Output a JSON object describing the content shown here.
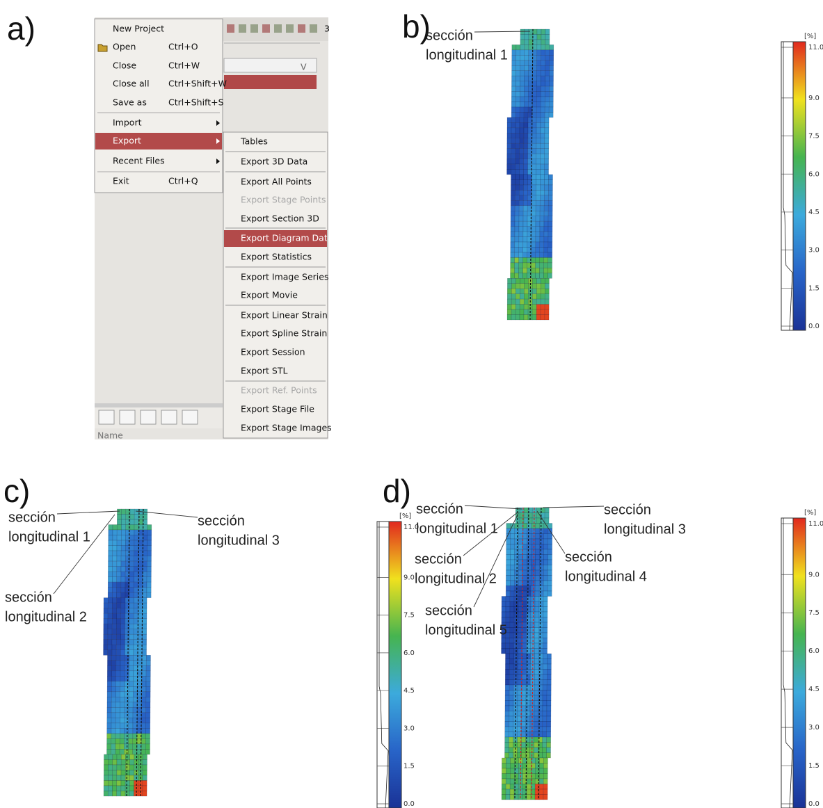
{
  "panels": {
    "a": "a)",
    "b": "b)",
    "c": "c)",
    "d": "d)"
  },
  "menu": {
    "items": [
      {
        "label": "New Project"
      },
      {
        "label": "Open",
        "shortcut": "Ctrl+O"
      },
      {
        "label": "Close",
        "shortcut": "Ctrl+W"
      },
      {
        "label": "Close all",
        "shortcut": "Ctrl+Shift+W"
      },
      {
        "label": "Save as",
        "shortcut": "Ctrl+Shift+S"
      },
      {
        "label": "Import",
        "submenu": true
      },
      {
        "label": "Export",
        "submenu": true,
        "highlighted": true
      },
      {
        "label": "Recent Files",
        "submenu": true
      },
      {
        "label": "Exit",
        "shortcut": "Ctrl+Q"
      }
    ],
    "submenu": [
      {
        "label": "Tables"
      },
      {
        "label": "Export 3D Data"
      },
      {
        "label": "Export All Points"
      },
      {
        "label": "Export Stage Points",
        "disabled": true
      },
      {
        "label": "Export Section 3D"
      },
      {
        "label": "Export Diagram Data",
        "highlighted": true
      },
      {
        "label": "Export Statistics"
      },
      {
        "label": "Export Image Series"
      },
      {
        "label": "Export Movie"
      },
      {
        "label": "Export Linear Strain"
      },
      {
        "label": "Export Spline Strain"
      },
      {
        "label": "Export Session"
      },
      {
        "label": "Export STL"
      },
      {
        "label": "Export Ref. Points",
        "disabled": true
      },
      {
        "label": "Export Stage File"
      },
      {
        "label": "Export Stage Images"
      }
    ]
  },
  "window": {
    "field": "V",
    "tab": "3",
    "status": "Name"
  },
  "colorbar": {
    "unit": "[%]",
    "lim": [
      0,
      11
    ],
    "ticks": [
      {
        "value": 11,
        "label": "11.0"
      },
      {
        "value": 9,
        "label": "9.0"
      },
      {
        "value": 7.5,
        "label": "7.5"
      },
      {
        "value": 6,
        "label": "6.0"
      },
      {
        "value": 4.5,
        "label": "4.5"
      },
      {
        "value": 3,
        "label": "3.0"
      },
      {
        "value": 1.5,
        "label": "1.5"
      },
      {
        "value": 0,
        "label": "0.0"
      }
    ]
  },
  "annotations": {
    "b": [
      {
        "lines": [
          "sección",
          "longitudinal 1"
        ]
      }
    ],
    "c": [
      {
        "lines": [
          "sección",
          "longitudinal 1"
        ]
      },
      {
        "lines": [
          "sección",
          "longitudinal 3"
        ]
      },
      {
        "lines": [
          "sección",
          "longitudinal 2"
        ]
      }
    ],
    "d": [
      {
        "lines": [
          "sección",
          "longitudinal 1"
        ]
      },
      {
        "lines": [
          "sección",
          "longitudinal 3"
        ]
      },
      {
        "lines": [
          "sección",
          "longitudinal 2"
        ]
      },
      {
        "lines": [
          "sección",
          "longitudinal 4"
        ]
      },
      {
        "lines": [
          "sección",
          "longitudinal 5"
        ]
      }
    ]
  }
}
